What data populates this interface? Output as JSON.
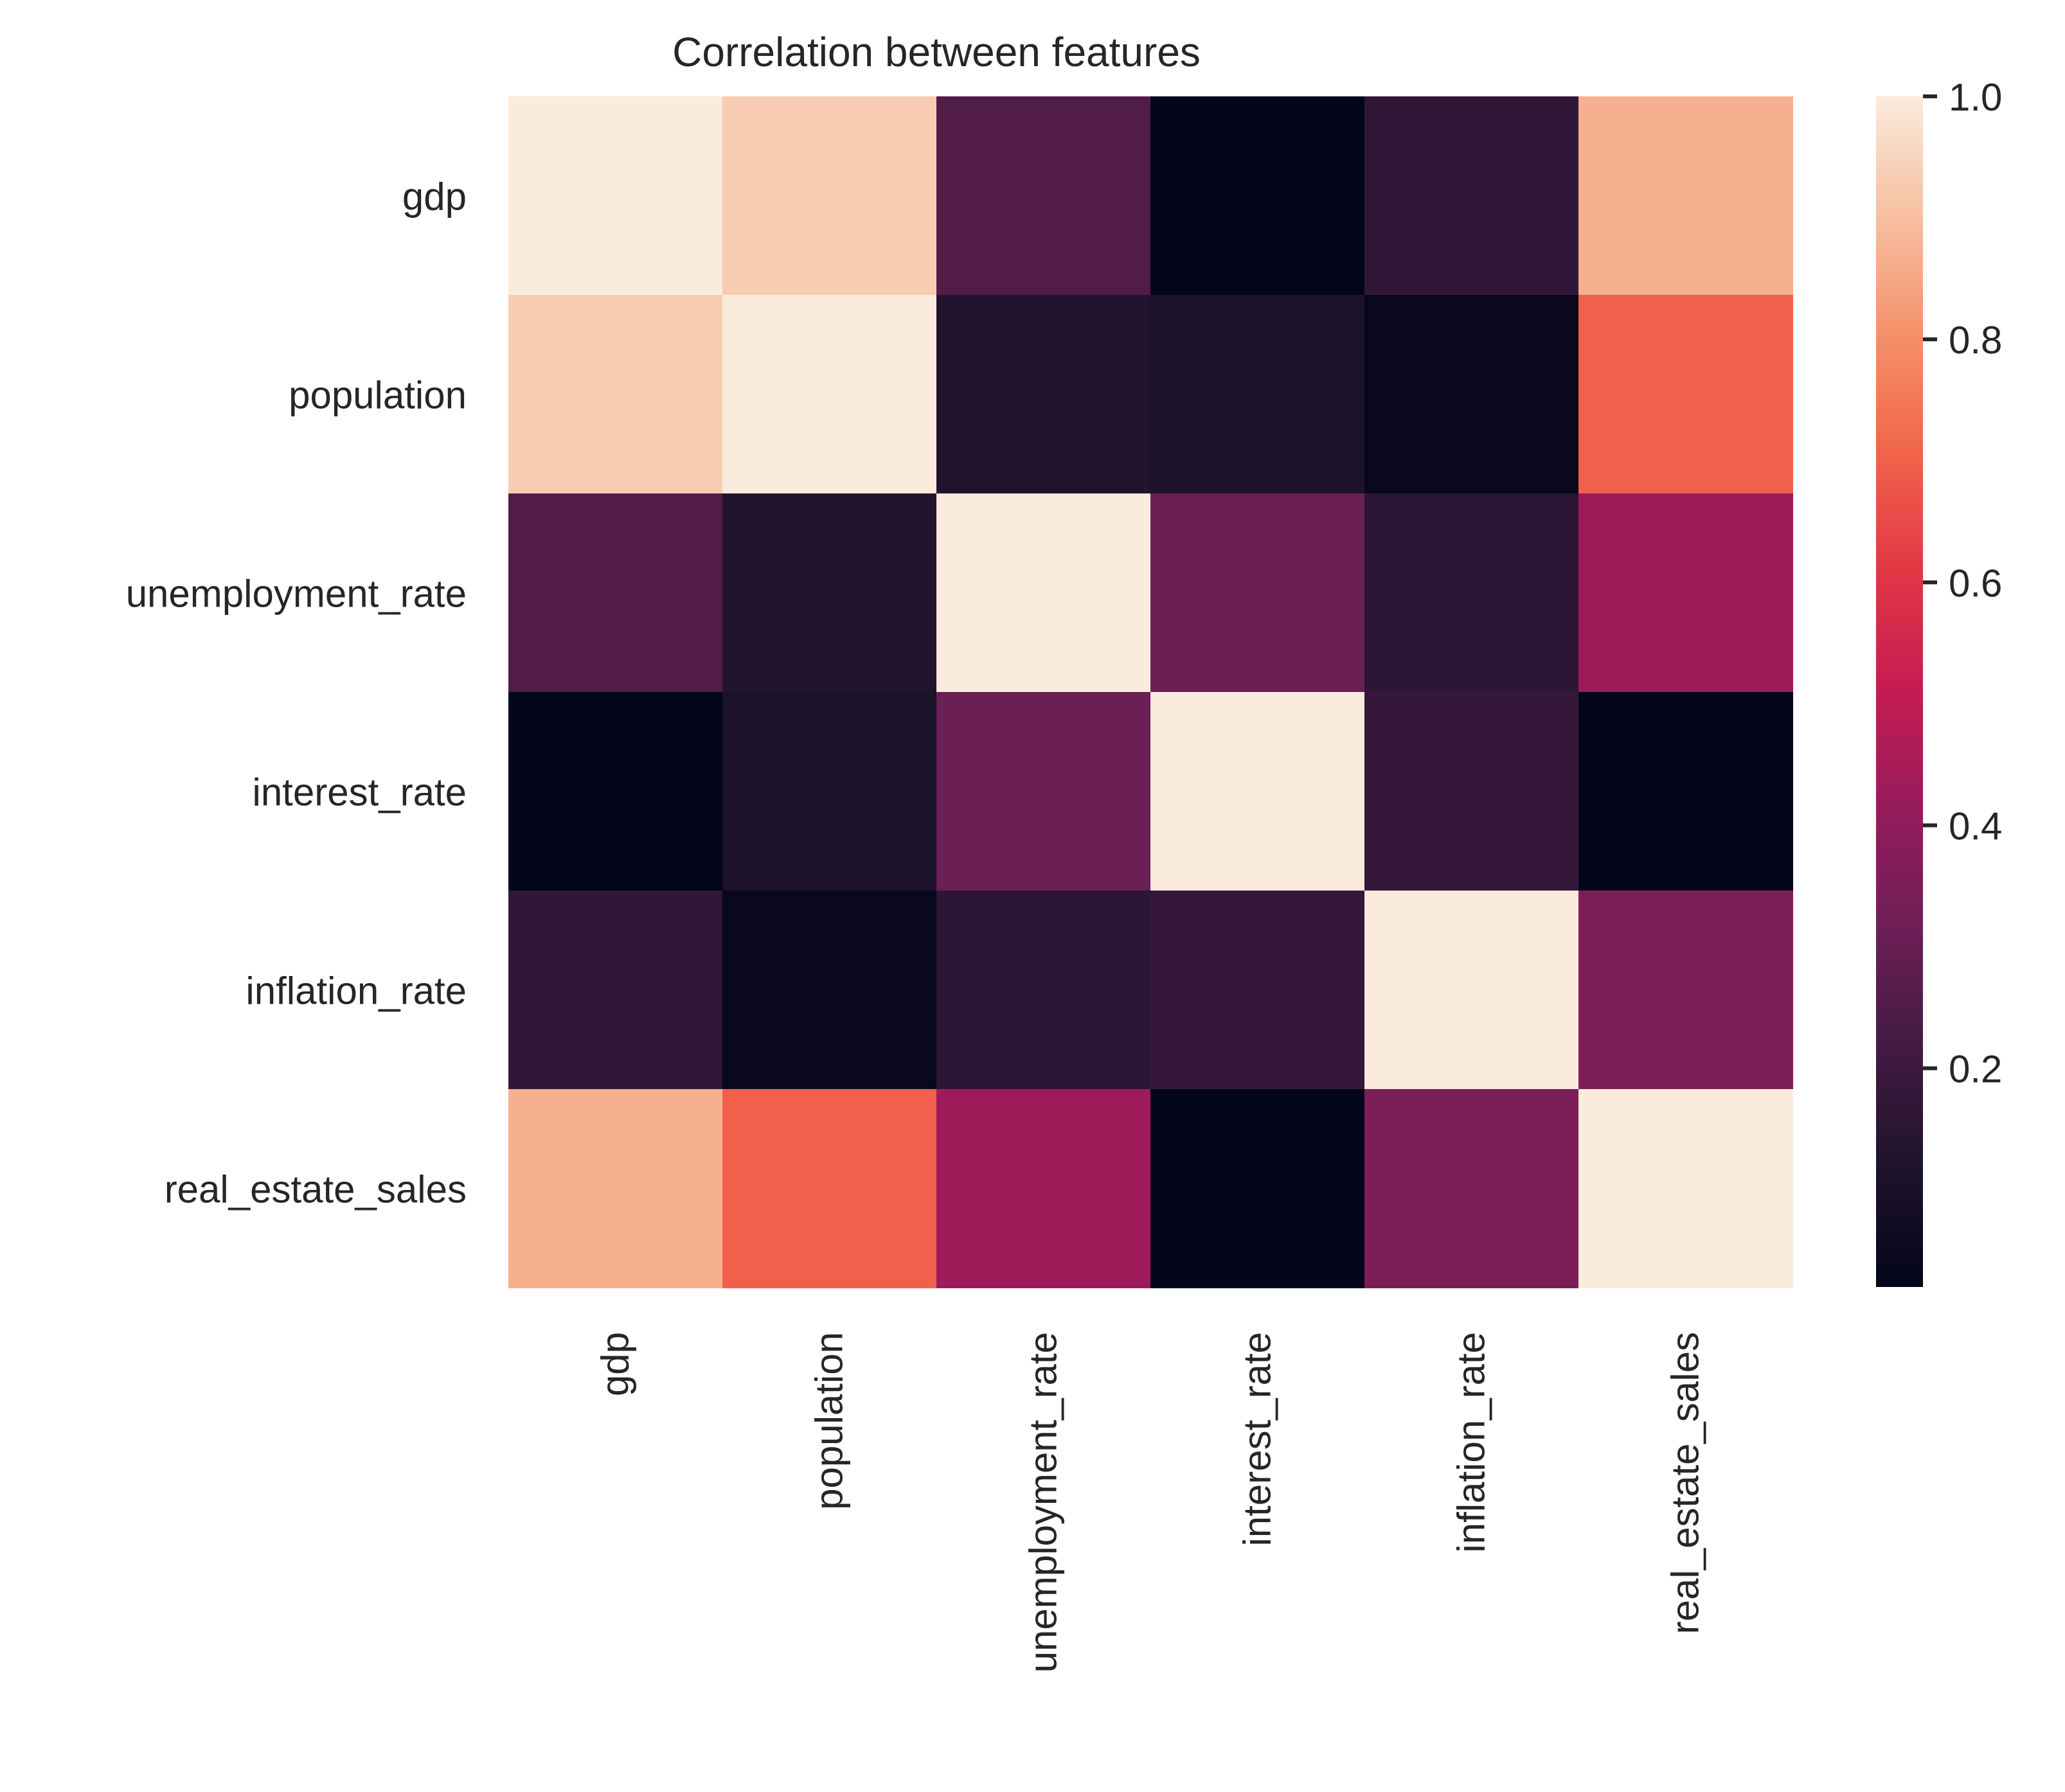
{
  "chart_data": {
    "type": "heatmap",
    "title": "Correlation between features",
    "xlabel": "",
    "ylabel": "",
    "x_categories": [
      "gdp",
      "population",
      "unemployment_rate",
      "interest_rate",
      "inflation_rate",
      "real_estate_sales"
    ],
    "y_categories": [
      "gdp",
      "population",
      "unemployment_rate",
      "interest_rate",
      "inflation_rate",
      "real_estate_sales"
    ],
    "values": [
      [
        1.0,
        0.93,
        0.25,
        0.02,
        0.17,
        0.87
      ],
      [
        0.93,
        1.0,
        0.13,
        0.11,
        0.04,
        0.7
      ],
      [
        0.25,
        0.13,
        1.0,
        0.31,
        0.16,
        0.43
      ],
      [
        0.02,
        0.11,
        0.31,
        1.0,
        0.18,
        0.02
      ],
      [
        0.17,
        0.04,
        0.16,
        0.18,
        1.0,
        0.35
      ],
      [
        0.87,
        0.7,
        0.43,
        0.02,
        0.35,
        1.0
      ]
    ],
    "colorbar": {
      "colormap": "rocket",
      "vmin": 0.02,
      "vmax": 1.0,
      "ticks": [
        0.2,
        0.4,
        0.6,
        0.8,
        1.0
      ],
      "tick_labels": [
        "0.2",
        "0.4",
        "0.6",
        "0.8",
        "1.0"
      ],
      "position": "right"
    },
    "grid": false
  }
}
